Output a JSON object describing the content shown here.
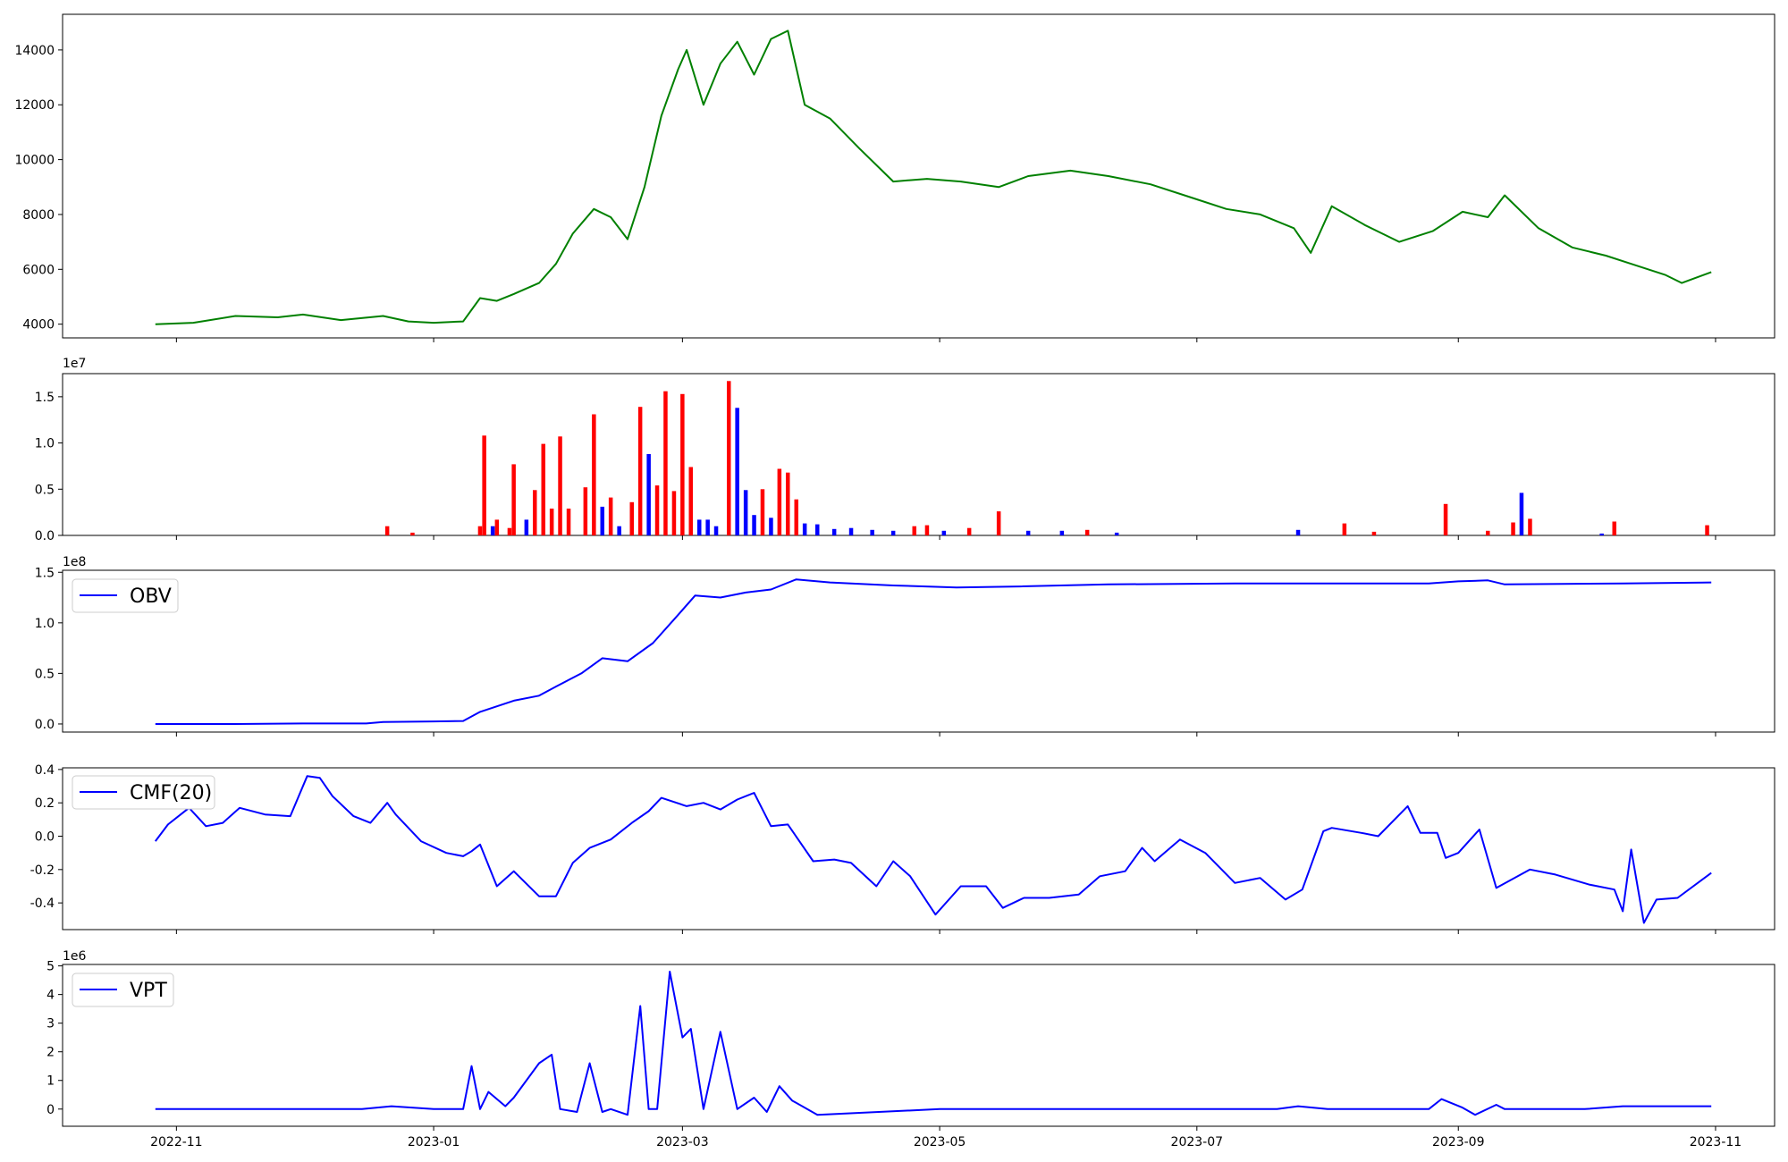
{
  "chart_data": [
    {
      "type": "line",
      "name": "price",
      "color": "#008000",
      "ylim": [
        3500,
        15300
      ],
      "yticks": [
        4000,
        6000,
        8000,
        10000,
        12000,
        14000
      ],
      "x": [
        "2022-10-27",
        "2022-11-05",
        "2022-11-15",
        "2022-11-25",
        "2022-12-01",
        "2022-12-10",
        "2022-12-20",
        "2022-12-26",
        "2023-01-01",
        "2023-01-08",
        "2023-01-12",
        "2023-01-16",
        "2023-01-20",
        "2023-01-26",
        "2023-01-30",
        "2023-02-03",
        "2023-02-08",
        "2023-02-12",
        "2023-02-16",
        "2023-02-20",
        "2023-02-24",
        "2023-02-28",
        "2023-03-02",
        "2023-03-06",
        "2023-03-10",
        "2023-03-14",
        "2023-03-18",
        "2023-03-22",
        "2023-03-26",
        "2023-03-30",
        "2023-04-05",
        "2023-04-12",
        "2023-04-20",
        "2023-04-28",
        "2023-05-06",
        "2023-05-15",
        "2023-05-22",
        "2023-06-01",
        "2023-06-10",
        "2023-06-20",
        "2023-06-30",
        "2023-07-08",
        "2023-07-16",
        "2023-07-24",
        "2023-07-28",
        "2023-08-02",
        "2023-08-10",
        "2023-08-18",
        "2023-08-26",
        "2023-09-02",
        "2023-09-08",
        "2023-09-12",
        "2023-09-20",
        "2023-09-28",
        "2023-10-06",
        "2023-10-12",
        "2023-10-20",
        "2023-10-24",
        "2023-10-31"
      ],
      "y": [
        4000,
        4050,
        4300,
        4250,
        4350,
        4150,
        4300,
        4100,
        4050,
        4100,
        4950,
        4850,
        5100,
        5500,
        6200,
        7300,
        8200,
        7900,
        7100,
        9000,
        11600,
        13300,
        14000,
        12000,
        13500,
        14300,
        13100,
        14400,
        14700,
        12000,
        11500,
        10400,
        9200,
        9300,
        9200,
        9000,
        9400,
        9600,
        9400,
        9100,
        8600,
        8200,
        8000,
        7500,
        6600,
        8300,
        7600,
        7000,
        7400,
        8100,
        7900,
        8700,
        7500,
        6800,
        6500,
        6200,
        5800,
        5500,
        5900
      ]
    },
    {
      "type": "bar",
      "name": "volume",
      "ylim": [
        0,
        17500000
      ],
      "yticks": [
        0.0,
        0.5,
        1.0,
        1.5
      ],
      "tick_scale": 10000000,
      "offset_label": "1e7",
      "x": [
        "2022-12-21",
        "2022-12-27",
        "2023-01-12",
        "2023-01-13",
        "2023-01-15",
        "2023-01-16",
        "2023-01-19",
        "2023-01-20",
        "2023-01-23",
        "2023-01-25",
        "2023-01-27",
        "2023-01-29",
        "2023-01-31",
        "2023-02-02",
        "2023-02-06",
        "2023-02-08",
        "2023-02-10",
        "2023-02-12",
        "2023-02-14",
        "2023-02-17",
        "2023-02-19",
        "2023-02-21",
        "2023-02-23",
        "2023-02-25",
        "2023-02-27",
        "2023-03-01",
        "2023-03-03",
        "2023-03-05",
        "2023-03-07",
        "2023-03-09",
        "2023-03-12",
        "2023-03-14",
        "2023-03-16",
        "2023-03-18",
        "2023-03-20",
        "2023-03-22",
        "2023-03-24",
        "2023-03-26",
        "2023-03-28",
        "2023-03-30",
        "2023-04-02",
        "2023-04-06",
        "2023-04-10",
        "2023-04-15",
        "2023-04-20",
        "2023-04-25",
        "2023-04-28",
        "2023-05-02",
        "2023-05-08",
        "2023-05-15",
        "2023-05-22",
        "2023-05-30",
        "2023-06-05",
        "2023-06-12",
        "2023-07-25",
        "2023-08-05",
        "2023-08-12",
        "2023-08-29",
        "2023-09-08",
        "2023-09-14",
        "2023-09-16",
        "2023-09-18",
        "2023-10-05",
        "2023-10-08",
        "2023-10-30"
      ],
      "values": [
        1000000,
        300000,
        1000000,
        10800000,
        1000000,
        1700000,
        800000,
        7700000,
        1700000,
        4900000,
        9900000,
        2900000,
        10700000,
        2900000,
        5200000,
        13100000,
        3100000,
        4100000,
        1000000,
        3600000,
        13900000,
        8800000,
        5400000,
        15600000,
        4800000,
        15300000,
        7400000,
        1700000,
        1700000,
        1000000,
        16700000,
        13800000,
        4900000,
        2200000,
        5000000,
        1900000,
        7200000,
        6800000,
        3900000,
        1300000,
        1200000,
        700000,
        800000,
        600000,
        500000,
        1000000,
        1100000,
        500000,
        800000,
        2600000,
        500000,
        500000,
        600000,
        300000,
        600000,
        1300000,
        400000,
        3400000,
        500000,
        1400000,
        4600000,
        1800000,
        200000,
        1500000,
        1100000
      ],
      "colors": [
        "red",
        "red",
        "red",
        "red",
        "blue",
        "red",
        "red",
        "red",
        "blue",
        "red",
        "red",
        "red",
        "red",
        "red",
        "red",
        "red",
        "blue",
        "red",
        "blue",
        "red",
        "red",
        "blue",
        "red",
        "red",
        "red",
        "red",
        "red",
        "blue",
        "blue",
        "blue",
        "red",
        "blue",
        "blue",
        "blue",
        "red",
        "blue",
        "red",
        "red",
        "red",
        "blue",
        "blue",
        "blue",
        "blue",
        "blue",
        "blue",
        "red",
        "red",
        "blue",
        "red",
        "red",
        "blue",
        "blue",
        "red",
        "blue",
        "blue",
        "red",
        "red",
        "red",
        "red",
        "red",
        "blue",
        "red",
        "blue",
        "red",
        "red"
      ]
    },
    {
      "type": "line",
      "name": "OBV",
      "legend": "OBV",
      "color": "#0000ff",
      "ylim": [
        -8000000,
        152000000
      ],
      "yticks": [
        0.0,
        0.5,
        1.0,
        1.5
      ],
      "tick_scale": 100000000,
      "offset_label": "1e8",
      "x": [
        "2022-10-27",
        "2022-11-15",
        "2022-12-01",
        "2022-12-16",
        "2022-12-20",
        "2023-01-01",
        "2023-01-08",
        "2023-01-12",
        "2023-01-20",
        "2023-01-26",
        "2023-01-30",
        "2023-02-05",
        "2023-02-10",
        "2023-02-16",
        "2023-02-22",
        "2023-02-28",
        "2023-03-04",
        "2023-03-10",
        "2023-03-16",
        "2023-03-22",
        "2023-03-28",
        "2023-04-05",
        "2023-04-20",
        "2023-05-05",
        "2023-05-20",
        "2023-06-10",
        "2023-07-10",
        "2023-08-10",
        "2023-08-25",
        "2023-09-01",
        "2023-09-08",
        "2023-09-12",
        "2023-10-10",
        "2023-10-31"
      ],
      "y": [
        0,
        0,
        500000,
        500000,
        2000000,
        2500000,
        3000000,
        12000000,
        23000000,
        28000000,
        37000000,
        50000000,
        65000000,
        62000000,
        80000000,
        108000000,
        127000000,
        125000000,
        130000000,
        133000000,
        143000000,
        140000000,
        137000000,
        135000000,
        136000000,
        138000000,
        139000000,
        139000000,
        139000000,
        141000000,
        142000000,
        138000000,
        139000000,
        140000000
      ]
    },
    {
      "type": "line",
      "name": "CMF(20)",
      "legend": "CMF(20)",
      "color": "#0000ff",
      "ylim": [
        -0.56,
        0.41
      ],
      "yticks": [
        -0.4,
        -0.2,
        0.0,
        0.2,
        0.4
      ],
      "x": [
        "2022-10-27",
        "2022-10-30",
        "2022-11-02",
        "2022-11-04",
        "2022-11-08",
        "2022-11-12",
        "2022-11-16",
        "2022-11-22",
        "2022-11-28",
        "2022-12-02",
        "2022-12-05",
        "2022-12-08",
        "2022-12-13",
        "2022-12-17",
        "2022-12-21",
        "2022-12-23",
        "2022-12-29",
        "2023-01-04",
        "2023-01-08",
        "2023-01-10",
        "2023-01-12",
        "2023-01-16",
        "2023-01-20",
        "2023-01-26",
        "2023-01-30",
        "2023-02-03",
        "2023-02-07",
        "2023-02-12",
        "2023-02-17",
        "2023-02-21",
        "2023-02-24",
        "2023-03-02",
        "2023-03-06",
        "2023-03-10",
        "2023-03-14",
        "2023-03-18",
        "2023-03-22",
        "2023-03-26",
        "2023-04-01",
        "2023-04-06",
        "2023-04-10",
        "2023-04-16",
        "2023-04-20",
        "2023-04-24",
        "2023-04-30",
        "2023-05-06",
        "2023-05-12",
        "2023-05-16",
        "2023-05-21",
        "2023-05-27",
        "2023-06-03",
        "2023-06-08",
        "2023-06-14",
        "2023-06-18",
        "2023-06-21",
        "2023-06-27",
        "2023-07-03",
        "2023-07-10",
        "2023-07-16",
        "2023-07-22",
        "2023-07-26",
        "2023-07-31",
        "2023-08-02",
        "2023-08-09",
        "2023-08-13",
        "2023-08-20",
        "2023-08-23",
        "2023-08-27",
        "2023-08-29",
        "2023-09-01",
        "2023-09-06",
        "2023-09-10",
        "2023-09-18",
        "2023-09-24",
        "2023-10-02",
        "2023-10-08",
        "2023-10-10",
        "2023-10-12",
        "2023-10-15",
        "2023-10-18",
        "2023-10-23",
        "2023-10-31"
      ],
      "y": [
        -0.03,
        0.07,
        0.13,
        0.17,
        0.06,
        0.08,
        0.17,
        0.13,
        0.12,
        0.36,
        0.35,
        0.24,
        0.12,
        0.08,
        0.2,
        0.13,
        -0.03,
        -0.1,
        -0.12,
        -0.09,
        -0.05,
        -0.3,
        -0.21,
        -0.36,
        -0.36,
        -0.16,
        -0.07,
        -0.02,
        0.08,
        0.15,
        0.23,
        0.18,
        0.2,
        0.16,
        0.22,
        0.26,
        0.06,
        0.07,
        -0.15,
        -0.14,
        -0.16,
        -0.3,
        -0.15,
        -0.24,
        -0.47,
        -0.3,
        -0.3,
        -0.43,
        -0.37,
        -0.37,
        -0.35,
        -0.24,
        -0.21,
        -0.07,
        -0.15,
        -0.02,
        -0.1,
        -0.28,
        -0.25,
        -0.38,
        -0.32,
        0.03,
        0.05,
        0.02,
        0.0,
        0.18,
        0.02,
        0.02,
        -0.13,
        -0.1,
        0.04,
        -0.31,
        -0.2,
        -0.23,
        -0.29,
        -0.32,
        -0.45,
        -0.08,
        -0.52,
        -0.38,
        -0.37,
        -0.22
      ]
    },
    {
      "type": "line",
      "name": "VPT",
      "legend": "VPT",
      "color": "#0000ff",
      "ylim": [
        -600000,
        5050000
      ],
      "yticks": [
        0,
        1,
        2,
        3,
        4,
        5
      ],
      "tick_scale": 1000000,
      "offset_label": "1e6",
      "x": [
        "2022-10-27",
        "2022-12-15",
        "2022-12-22",
        "2023-01-01",
        "2023-01-08",
        "2023-01-10",
        "2023-01-12",
        "2023-01-14",
        "2023-01-18",
        "2023-01-20",
        "2023-01-26",
        "2023-01-29",
        "2023-01-31",
        "2023-02-04",
        "2023-02-07",
        "2023-02-10",
        "2023-02-12",
        "2023-02-16",
        "2023-02-19",
        "2023-02-21",
        "2023-02-23",
        "2023-02-26",
        "2023-03-01",
        "2023-03-03",
        "2023-03-06",
        "2023-03-10",
        "2023-03-14",
        "2023-03-18",
        "2023-03-21",
        "2023-03-24",
        "2023-03-27",
        "2023-04-02",
        "2023-05-01",
        "2023-05-30",
        "2023-07-20",
        "2023-07-25",
        "2023-08-01",
        "2023-08-25",
        "2023-08-28",
        "2023-09-02",
        "2023-09-05",
        "2023-09-10",
        "2023-09-12",
        "2023-10-01",
        "2023-10-10",
        "2023-10-31"
      ],
      "y": [
        0,
        0,
        100000,
        0,
        0,
        1500000,
        0,
        600000,
        100000,
        400000,
        1600000,
        1900000,
        0,
        -100000,
        1600000,
        -100000,
        0,
        -200000,
        3600000,
        0,
        0,
        4800000,
        2500000,
        2800000,
        0,
        2700000,
        0,
        400000,
        -100000,
        800000,
        300000,
        -200000,
        0,
        0,
        0,
        100000,
        0,
        0,
        350000,
        50000,
        -200000,
        150000,
        0,
        0,
        100000,
        100000
      ]
    }
  ],
  "x_axis": {
    "domain": [
      "2022-10-05",
      "2023-11-15"
    ],
    "ticks": [
      "2022-11",
      "2023-01",
      "2023-03",
      "2023-05",
      "2023-07",
      "2023-09",
      "2023-11"
    ]
  }
}
